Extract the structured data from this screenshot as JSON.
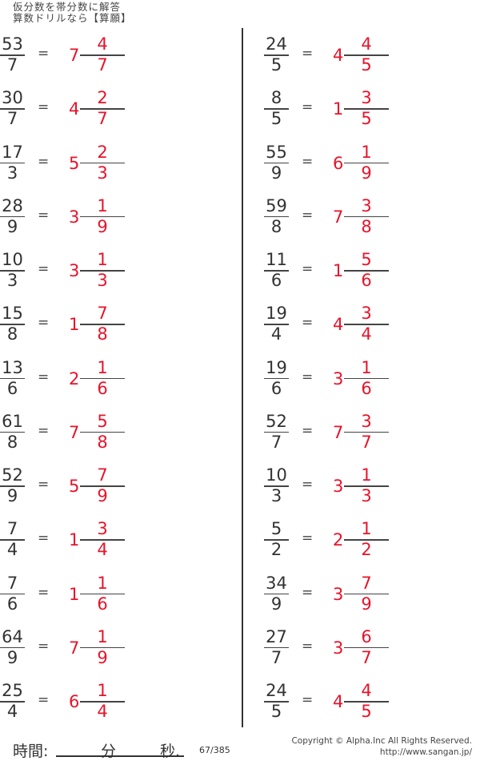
{
  "header": {
    "line1": "仮分数を帯分数に解答",
    "line2": "算数ドリルなら【算願】"
  },
  "colors": {
    "answer": "#e8132a",
    "text": "#333333"
  },
  "equals": "=",
  "left": [
    {
      "n": "53",
      "d": "7",
      "w": "7",
      "an": "4",
      "ad": "7"
    },
    {
      "n": "30",
      "d": "7",
      "w": "4",
      "an": "2",
      "ad": "7"
    },
    {
      "n": "17",
      "d": "3",
      "w": "5",
      "an": "2",
      "ad": "3"
    },
    {
      "n": "28",
      "d": "9",
      "w": "3",
      "an": "1",
      "ad": "9"
    },
    {
      "n": "10",
      "d": "3",
      "w": "3",
      "an": "1",
      "ad": "3"
    },
    {
      "n": "15",
      "d": "8",
      "w": "1",
      "an": "7",
      "ad": "8"
    },
    {
      "n": "13",
      "d": "6",
      "w": "2",
      "an": "1",
      "ad": "6"
    },
    {
      "n": "61",
      "d": "8",
      "w": "7",
      "an": "5",
      "ad": "8"
    },
    {
      "n": "52",
      "d": "9",
      "w": "5",
      "an": "7",
      "ad": "9"
    },
    {
      "n": "7",
      "d": "4",
      "w": "1",
      "an": "3",
      "ad": "4"
    },
    {
      "n": "7",
      "d": "6",
      "w": "1",
      "an": "1",
      "ad": "6"
    },
    {
      "n": "64",
      "d": "9",
      "w": "7",
      "an": "1",
      "ad": "9"
    },
    {
      "n": "25",
      "d": "4",
      "w": "6",
      "an": "1",
      "ad": "4"
    }
  ],
  "right": [
    {
      "n": "24",
      "d": "5",
      "w": "4",
      "an": "4",
      "ad": "5"
    },
    {
      "n": "8",
      "d": "5",
      "w": "1",
      "an": "3",
      "ad": "5"
    },
    {
      "n": "55",
      "d": "9",
      "w": "6",
      "an": "1",
      "ad": "9"
    },
    {
      "n": "59",
      "d": "8",
      "w": "7",
      "an": "3",
      "ad": "8"
    },
    {
      "n": "11",
      "d": "6",
      "w": "1",
      "an": "5",
      "ad": "6"
    },
    {
      "n": "19",
      "d": "4",
      "w": "4",
      "an": "3",
      "ad": "4"
    },
    {
      "n": "19",
      "d": "6",
      "w": "3",
      "an": "1",
      "ad": "6"
    },
    {
      "n": "52",
      "d": "7",
      "w": "7",
      "an": "3",
      "ad": "7"
    },
    {
      "n": "10",
      "d": "3",
      "w": "3",
      "an": "1",
      "ad": "3"
    },
    {
      "n": "5",
      "d": "2",
      "w": "2",
      "an": "1",
      "ad": "2"
    },
    {
      "n": "34",
      "d": "9",
      "w": "3",
      "an": "7",
      "ad": "9"
    },
    {
      "n": "27",
      "d": "7",
      "w": "3",
      "an": "6",
      "ad": "7"
    },
    {
      "n": "24",
      "d": "5",
      "w": "4",
      "an": "4",
      "ad": "5"
    }
  ],
  "footer": {
    "time_label": "時間:",
    "minutes": "分",
    "seconds": "秒.",
    "page": "67/385",
    "copyright": "Copyright ©  Alpha.Inc All Rights Reserved.",
    "url": "http://www.sangan.jp/"
  }
}
